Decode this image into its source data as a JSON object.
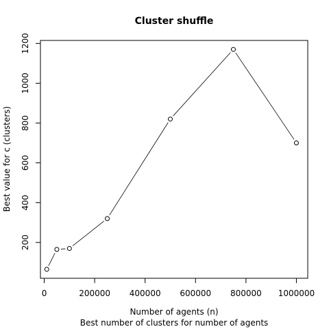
{
  "chart_data": {
    "type": "line",
    "title": "Cluster shuffle",
    "xlabel": "Number of agents (n)",
    "subtitle": "Best number of clusters for number of agents",
    "ylabel": "Best value for c (clusters)",
    "x": [
      10000,
      50000,
      100000,
      250000,
      500000,
      750000,
      1000000
    ],
    "y": [
      65,
      165,
      170,
      320,
      820,
      1170,
      700
    ],
    "xlim": [
      -15000,
      1045000
    ],
    "ylim": [
      20,
      1215
    ],
    "xticks": [
      0,
      200000,
      400000,
      600000,
      800000,
      1000000
    ],
    "xtick_labels": [
      "0",
      "200000",
      "400000",
      "600000",
      "800000",
      "1000000"
    ],
    "yticks": [
      200,
      400,
      600,
      800,
      1000,
      1200
    ],
    "ytick_labels": [
      "200",
      "400",
      "600",
      "800",
      "1000",
      "1200"
    ],
    "grid": false,
    "legend": "none",
    "style": "points connected by lines (type b)"
  }
}
